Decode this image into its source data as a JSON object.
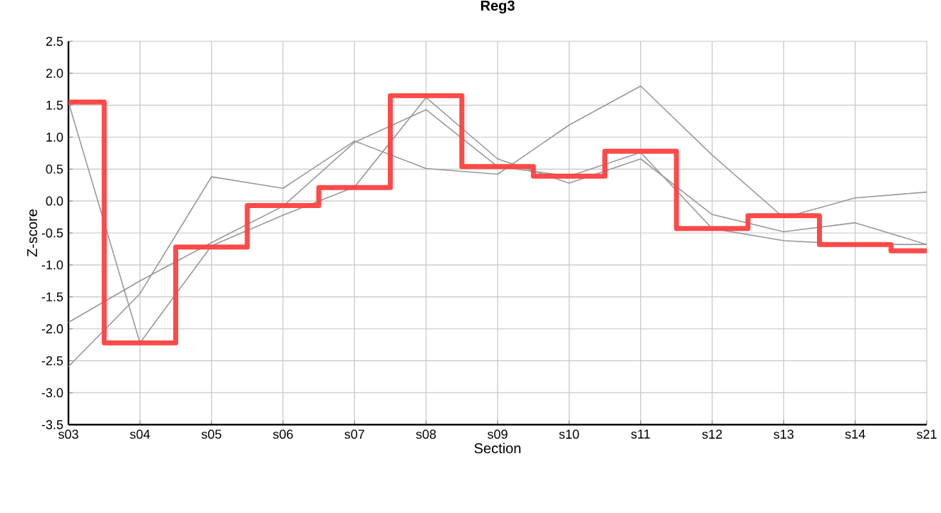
{
  "chart_data": {
    "type": "line",
    "title": "**Reg3**",
    "xlabel": "Section",
    "ylabel": "Z-score",
    "categories": [
      "s03",
      "s04",
      "s05",
      "s06",
      "s07",
      "s08",
      "s09",
      "s10",
      "s11",
      "s12",
      "s13",
      "s14",
      "s21"
    ],
    "series": [
      {
        "color": "#999999",
        "values": [
          1.55,
          -2.22,
          -0.7,
          -0.22,
          0.22,
          1.62,
          0.66,
          0.28,
          0.66,
          -0.21,
          -0.48,
          -0.34,
          -0.68
        ]
      },
      {
        "color": "#999999",
        "values": [
          -1.9,
          -1.25,
          -0.65,
          -0.08,
          0.92,
          1.43,
          0.54,
          0.39,
          0.76,
          -0.43,
          -0.62,
          -0.68,
          -0.68
        ]
      },
      {
        "color": "#999999",
        "values": [
          -2.59,
          -1.45,
          0.38,
          0.2,
          0.94,
          0.51,
          0.42,
          1.19,
          1.8,
          0.72,
          -0.26,
          0.05,
          0.14
        ]
      },
      {
        "type": "step",
        "color": "#ff4040",
        "values": [
          1.55,
          -2.22,
          -0.72,
          -0.07,
          0.21,
          1.65,
          0.54,
          0.39,
          0.78,
          -0.43,
          -0.23,
          -0.68,
          -0.78
        ]
      }
    ],
    "ylim": [
      -3.5,
      2.5
    ],
    "yticks": [
      {
        "value": 2.5,
        "label": "2.5"
      },
      {
        "value": 2,
        "label": "2.0"
      },
      {
        "value": 1.5,
        "label": "1.5"
      },
      {
        "value": 1,
        "label": "1.0"
      },
      {
        "value": 0.5,
        "label": "0.5"
      },
      {
        "value": 0,
        "label": "0.0"
      },
      {
        "value": -0.5,
        "label": "-0.5"
      },
      {
        "value": -1,
        "label": "-1.0"
      },
      {
        "value": -1.5,
        "label": "-1.5"
      },
      {
        "value": -2,
        "label": "-2.0"
      },
      {
        "value": -2.5,
        "label": "-2.5"
      },
      {
        "value": -3,
        "label": "-3.0"
      },
      {
        "value": -3.5,
        "label": "-3.5"
      }
    ],
    "grid": true
  }
}
